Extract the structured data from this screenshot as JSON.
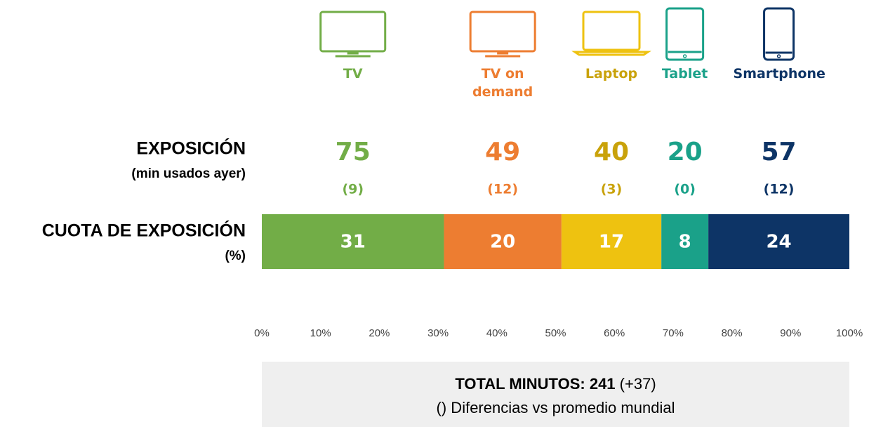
{
  "chart_data": {
    "type": "bar",
    "orientation": "horizontal",
    "stacked": true,
    "exposure_title": "EXPOSICIÓN",
    "exposure_subtitle": "(min usados ayer)",
    "share_title": "CUOTA DE EXPOSICIÓN",
    "share_subtitle": "(%)",
    "series": [
      {
        "name": "TV",
        "color": "#72ad47",
        "values": [
          31
        ],
        "exposure": 75,
        "difference": 9,
        "difference_label": "(9)"
      },
      {
        "name": "TV on demand",
        "color": "#ed7d31",
        "values": [
          20
        ],
        "exposure": 49,
        "difference": 12,
        "difference_label": "(12)"
      },
      {
        "name": "Laptop",
        "color": "#eec210",
        "values": [
          17
        ],
        "exposure": 40,
        "difference": 3,
        "difference_label": "(3)"
      },
      {
        "name": "Tablet",
        "color": "#1aa189",
        "values": [
          8
        ],
        "exposure": 20,
        "difference": 0,
        "difference_label": "(0)"
      },
      {
        "name": "Smartphone",
        "color": "#0d3466",
        "values": [
          24
        ],
        "exposure": 57,
        "difference": 12,
        "difference_label": "(12)"
      }
    ],
    "label_colors": [
      "#72ad47",
      "#ed7d31",
      "#c9a20a",
      "#1aa189",
      "#0d3466"
    ],
    "xlim": [
      0,
      100
    ],
    "xticks": [
      {
        "value": 0,
        "label": "0%"
      },
      {
        "value": 10,
        "label": "10%"
      },
      {
        "value": 20,
        "label": "20%"
      },
      {
        "value": 30,
        "label": "30%"
      },
      {
        "value": 40,
        "label": "40%"
      },
      {
        "value": 50,
        "label": "50%"
      },
      {
        "value": 60,
        "label": "60%"
      },
      {
        "value": 70,
        "label": "70%"
      },
      {
        "value": 80,
        "label": "80%"
      },
      {
        "value": 90,
        "label": "90%"
      },
      {
        "value": 100,
        "label": "100%"
      }
    ],
    "total": {
      "label": "TOTAL MINUTOS:",
      "value": 241,
      "difference": 37,
      "difference_label": "(+37)",
      "note": "() Diferencias vs promedio mundial"
    }
  }
}
